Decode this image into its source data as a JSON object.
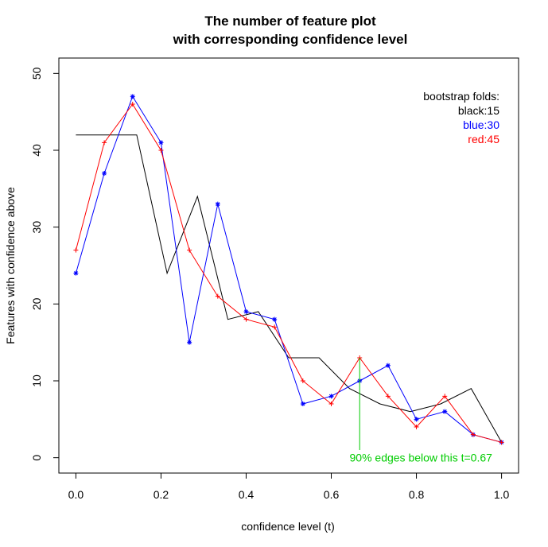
{
  "chart_data": {
    "type": "line",
    "title": [
      "The number of feature plot",
      "with corresponding confidence level"
    ],
    "xlabel": "confidence level (t)",
    "ylabel": "Features with confidence above",
    "xlim": [
      -0.04,
      1.04
    ],
    "ylim": [
      -2.0,
      52.0
    ],
    "xticks": [
      0.0,
      0.2,
      0.4,
      0.6,
      0.8,
      1.0
    ],
    "xtick_labels": [
      "0.0",
      "0.2",
      "0.4",
      "0.6",
      "0.8",
      "1.0"
    ],
    "yticks": [
      0,
      10,
      20,
      30,
      40,
      50
    ],
    "ytick_labels": [
      "0",
      "10",
      "20",
      "30",
      "40",
      "50"
    ],
    "x": [
      0.0,
      0.0667,
      0.1333,
      0.2,
      0.2667,
      0.3333,
      0.4,
      0.4667,
      0.5333,
      0.6,
      0.6667,
      0.7333,
      0.8,
      0.8667,
      0.9333,
      1.0
    ],
    "series": [
      {
        "name": "black:15",
        "color": "#000000",
        "marker": "none",
        "x": [
          0.0,
          0.0714,
          0.1429,
          0.2143,
          0.2857,
          0.3571,
          0.4286,
          0.5,
          0.5714,
          0.6429,
          0.7143,
          0.7857,
          0.8571,
          0.9286,
          1.0
        ],
        "values": [
          42,
          42,
          42,
          24,
          34,
          18,
          19,
          13,
          13,
          9,
          7,
          6,
          7,
          9,
          2
        ]
      },
      {
        "name": "blue:30",
        "color": "#0000ff",
        "marker": "asterisk",
        "values": [
          24,
          37,
          47,
          41,
          15,
          33,
          19,
          18,
          7,
          8,
          10,
          12,
          5,
          6,
          3,
          2
        ]
      },
      {
        "name": "red:45",
        "color": "#ff0000",
        "marker": "plus",
        "values": [
          27,
          41,
          46,
          40,
          27,
          21,
          18,
          17,
          10,
          7,
          13,
          8,
          4,
          8,
          3,
          2
        ]
      }
    ],
    "legend": {
      "heading": "bootstrap folds:",
      "items": [
        {
          "label": "black:15",
          "color": "#000000"
        },
        {
          "label": "blue:30",
          "color": "#0000ff"
        },
        {
          "label": "red:45",
          "color": "#ff0000"
        }
      ],
      "position": "top-right"
    },
    "annotation": {
      "text": "90% edges below this t=0.67",
      "x": 0.6667,
      "y_from": 1.0,
      "y_to": 13.0,
      "color": "#00cc00"
    }
  }
}
